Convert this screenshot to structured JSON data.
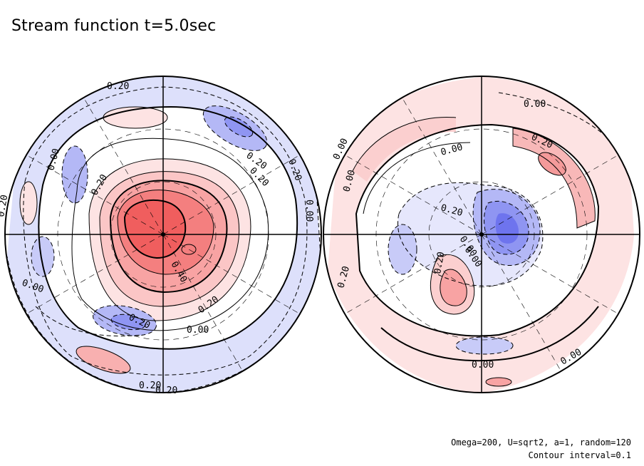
{
  "title": "Stream function t=5.0sec",
  "footer": {
    "params": "Omega=200, U=sqrt2, a=1, random=120",
    "contour": "Contour interval=0.1"
  },
  "colors": {
    "positive": "#f04848",
    "negative": "#5a5af0",
    "contour": "#000000"
  },
  "left_hemisphere": {
    "contour_labels": [
      "0.20",
      "0.20",
      "0.20",
      "0.20",
      "0.00",
      "0.00",
      "0.20",
      "0.20",
      "0.40",
      "0.20",
      "0.00",
      "0.20",
      "0.00",
      "0.20",
      "0.20"
    ]
  },
  "right_hemisphere": {
    "contour_labels": [
      "0.00",
      "0.20",
      "0.00",
      "0.00",
      "0.00",
      "0.20",
      "0.00",
      "0.00",
      "0.20",
      "0.20",
      "0.00",
      "0.00"
    ]
  }
}
